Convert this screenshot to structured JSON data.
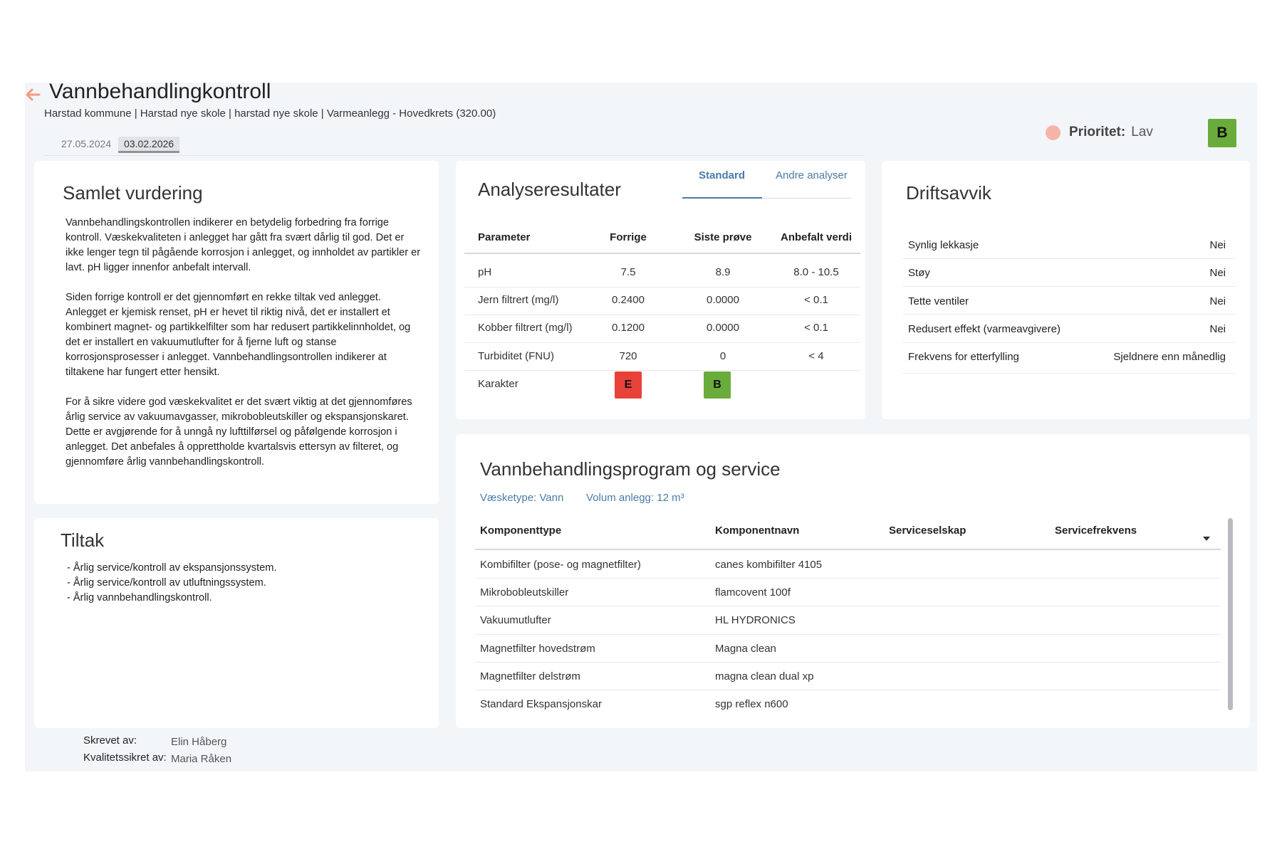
{
  "header": {
    "title": "Vannbehandlingkontroll",
    "breadcrumb": "Harstad kommune | Harstad nye skole | harstad nye skole | Varmeanlegg - Hovedkrets (320.00)",
    "dates": [
      "27.05.2024",
      "03.02.2026"
    ],
    "active_date": "03.02.2026",
    "priority_label": "Prioritet:",
    "priority_value": "Lav",
    "overall_grade": "B",
    "colors": {
      "accent": "#4a7ca8",
      "grade_good": "#6aac3c",
      "grade_bad": "#e8413a",
      "priority_low": "#f4b5a8",
      "back_arrow": "#f29a80"
    }
  },
  "summary": {
    "title": "Samlet vurdering",
    "paragraphs": [
      "Vannbehandlingskontrollen indikerer en betydelig forbedring fra forrige kontroll. Væskekvaliteten i anlegget har gått fra svært dårlig til god. Det er ikke lenger tegn til pågående korrosjon i anlegget, og innholdet av partikler er lavt. pH ligger innenfor anbefalt intervall.",
      "Siden forrige kontroll er det gjennomført en rekke tiltak ved anlegget. Anlegget er kjemisk renset, pH er hevet til riktig nivå, det er installert et kombinert magnet- og partikkelfilter som har redusert partikkelinnholdet, og det er installert en vakuumutlufter for å fjerne luft og stanse korrosjonsprosesser i anlegget. Vannbehandlingsontrollen indikerer at tiltakene har fungert etter hensikt.",
      "For å sikre videre god væskekvalitet er det svært viktig at det gjennomføres årlig service av vakuumavgasser, mikrobobleutskiller og ekspansjonskaret. Dette er avgjørende for å unngå ny lufttilførsel og påfølgende korrosjon i anlegget. Det anbefales å opprettholde kvartalsvis ettersyn av filteret, og gjennomføre årlig vannbehandlingskontroll."
    ]
  },
  "tiltak": {
    "title": "Tiltak",
    "items": [
      "- Årlig service/kontroll av ekspansjonssystem.",
      "- Årlig service/kontroll av utluftningssystem.",
      "- Årlig vannbehandlingskontroll."
    ]
  },
  "analysis": {
    "title": "Analyseresultater",
    "tabs": [
      "Standard",
      "Andre analyser"
    ],
    "active_tab": "Standard",
    "columns": [
      "Parameter",
      "Forrige",
      "Siste prøve",
      "Anbefalt verdi"
    ],
    "rows": [
      [
        "pH",
        "7.5",
        "8.9",
        "8.0 - 10.5"
      ],
      [
        "Jern filtrert (mg/l)",
        "0.2400",
        "0.0000",
        "< 0.1"
      ],
      [
        "Kobber filtrert (mg/l)",
        "0.1200",
        "0.0000",
        "< 0.1"
      ],
      [
        "Turbiditet (FNU)",
        "720",
        "0",
        "< 4"
      ]
    ],
    "grade_row_label": "Karakter",
    "grade_previous": "E",
    "grade_latest": "B"
  },
  "driftsavvik": {
    "title": "Driftsavvik",
    "rows": [
      {
        "label": "Synlig lekkasje",
        "value": "Nei"
      },
      {
        "label": "Støy",
        "value": "Nei"
      },
      {
        "label": "Tette ventiler",
        "value": "Nei"
      },
      {
        "label": "Redusert effekt (varmeavgivere)",
        "value": "Nei"
      },
      {
        "label": "Frekvens for etterfylling",
        "value": "Sjeldnere enn månedlig"
      }
    ]
  },
  "program": {
    "title": "Vannbehandlingsprogram og service",
    "fluid_type": "Væsketype: Vann",
    "volume": "Volum anlegg: 12 m³",
    "columns": [
      "Komponenttype",
      "Komponentnavn",
      "Serviceselskap",
      "Servicefrekvens"
    ],
    "rows": [
      [
        "Kombifilter (pose- og magnetfilter)",
        "canes kombifilter 4105",
        "",
        ""
      ],
      [
        "Mikrobobleutskiller",
        "flamcovent 100f",
        "",
        ""
      ],
      [
        "Vakuumutlufter",
        "HL HYDRONICS",
        "",
        ""
      ],
      [
        "Magnetfilter hovedstrøm",
        "Magna clean",
        "",
        ""
      ],
      [
        "Magnetfilter delstrøm",
        "magna clean dual xp",
        "",
        ""
      ],
      [
        "Standard Ekspansjonskar",
        "sgp reflex n600",
        "",
        ""
      ]
    ]
  },
  "footer": {
    "written_by_label": "Skrevet av:",
    "written_by": "Elin Håberg",
    "qa_label": "Kvalitetssikret av:",
    "qa_by": "Maria Råken"
  }
}
